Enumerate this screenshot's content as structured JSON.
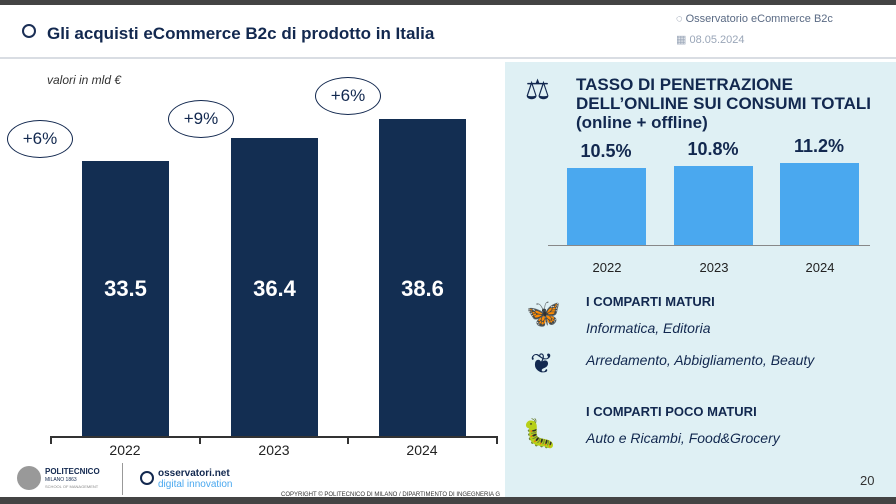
{
  "header": {
    "title": "Gli acquisti eCommerce B2c di prodotto in Italia",
    "observatory": "Osservatorio eCommerce B2c",
    "date": "08.05.2024"
  },
  "left_chart": {
    "unit_label": "valori in mld €",
    "growth": [
      "+6%",
      "+9%",
      "+6%"
    ]
  },
  "right_panel": {
    "title_lines": [
      "TASSO DI PENETRAZIONE",
      "DELL’ONLINE SUI CONSUMI TOTALI",
      "(online + offline)"
    ],
    "mature_heading": "I COMPARTI MATURI",
    "mature_1": "Informatica, Editoria",
    "mature_2": "Arredamento, Abbigliamento, Beauty",
    "immature_heading": "I COMPARTI POCO MATURI",
    "immature_1": "Auto e Ricambi, Food&Grocery",
    "icons": [
      "scale-icon",
      "butterfly-icon",
      "cocoon-icon",
      "caterpillar-icon"
    ]
  },
  "chart_data": [
    {
      "type": "bar",
      "categories": [
        "2022",
        "2023",
        "2024"
      ],
      "values": [
        33.5,
        36.4,
        38.6
      ],
      "value_labels": [
        "33.5",
        "36.4",
        "38.6"
      ],
      "title": "",
      "ylabel": "valori in mld €",
      "ylim": [
        0,
        45
      ],
      "color": "#132e52",
      "grid": false
    },
    {
      "type": "bar",
      "categories": [
        "2022",
        "2023",
        "2024"
      ],
      "values": [
        10.5,
        10.8,
        11.2
      ],
      "value_labels": [
        "10.5%",
        "10.8%",
        "11.2%"
      ],
      "title": "TASSO DI PENETRAZIONE DELL’ONLINE SUI CONSUMI TOTALI (online + offline)",
      "ylim": [
        0,
        13
      ],
      "color": "#4aa8ef",
      "grid": false
    }
  ],
  "footer": {
    "logo1": "POLITECNICO",
    "logo1_sub": "MILANO 1863",
    "logo1_sub2": "SCHOOL OF MANAGEMENT",
    "logo2": "osservatori.net",
    "logo2_sub": "digital innovation",
    "copyright": "COPYRIGHT © POLITECNICO DI MILANO / DIPARTIMENTO DI INGEGNERIA G",
    "page": "20"
  }
}
